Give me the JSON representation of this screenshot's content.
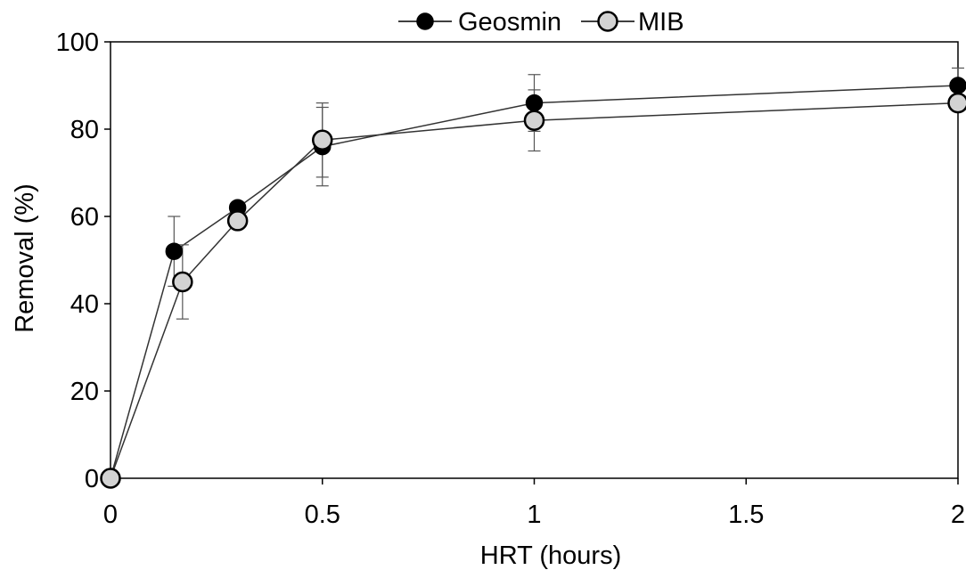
{
  "chart_data": {
    "type": "line",
    "title": "",
    "xlabel": "HRT (hours)",
    "ylabel": "Removal (%)",
    "xlim": [
      0,
      2
    ],
    "ylim": [
      0,
      100
    ],
    "xticks": [
      0,
      0.5,
      1,
      1.5,
      2
    ],
    "xtick_labels": [
      "0",
      "0.5",
      "1",
      "1.5",
      "2"
    ],
    "yticks": [
      0,
      20,
      40,
      60,
      80,
      100
    ],
    "ytick_labels": [
      "0",
      "20",
      "40",
      "60",
      "80",
      "100"
    ],
    "grid": false,
    "legend": "top-center",
    "series": [
      {
        "name": "Geosmin",
        "marker": "filled-circle",
        "marker_color": "#000000",
        "x": [
          0,
          0.15,
          0.3,
          0.5,
          1,
          2
        ],
        "y": [
          0,
          52,
          62,
          76,
          86,
          90
        ],
        "error": [
          null,
          8,
          null,
          9,
          6.5,
          4
        ]
      },
      {
        "name": "MIB",
        "marker": "open-circle",
        "marker_color": "#d3d3d3",
        "x": [
          0,
          0.17,
          0.3,
          0.5,
          1,
          2
        ],
        "y": [
          0,
          45,
          59,
          77.5,
          82,
          86
        ],
        "error": [
          null,
          8.5,
          null,
          8.5,
          7,
          null
        ]
      }
    ]
  }
}
